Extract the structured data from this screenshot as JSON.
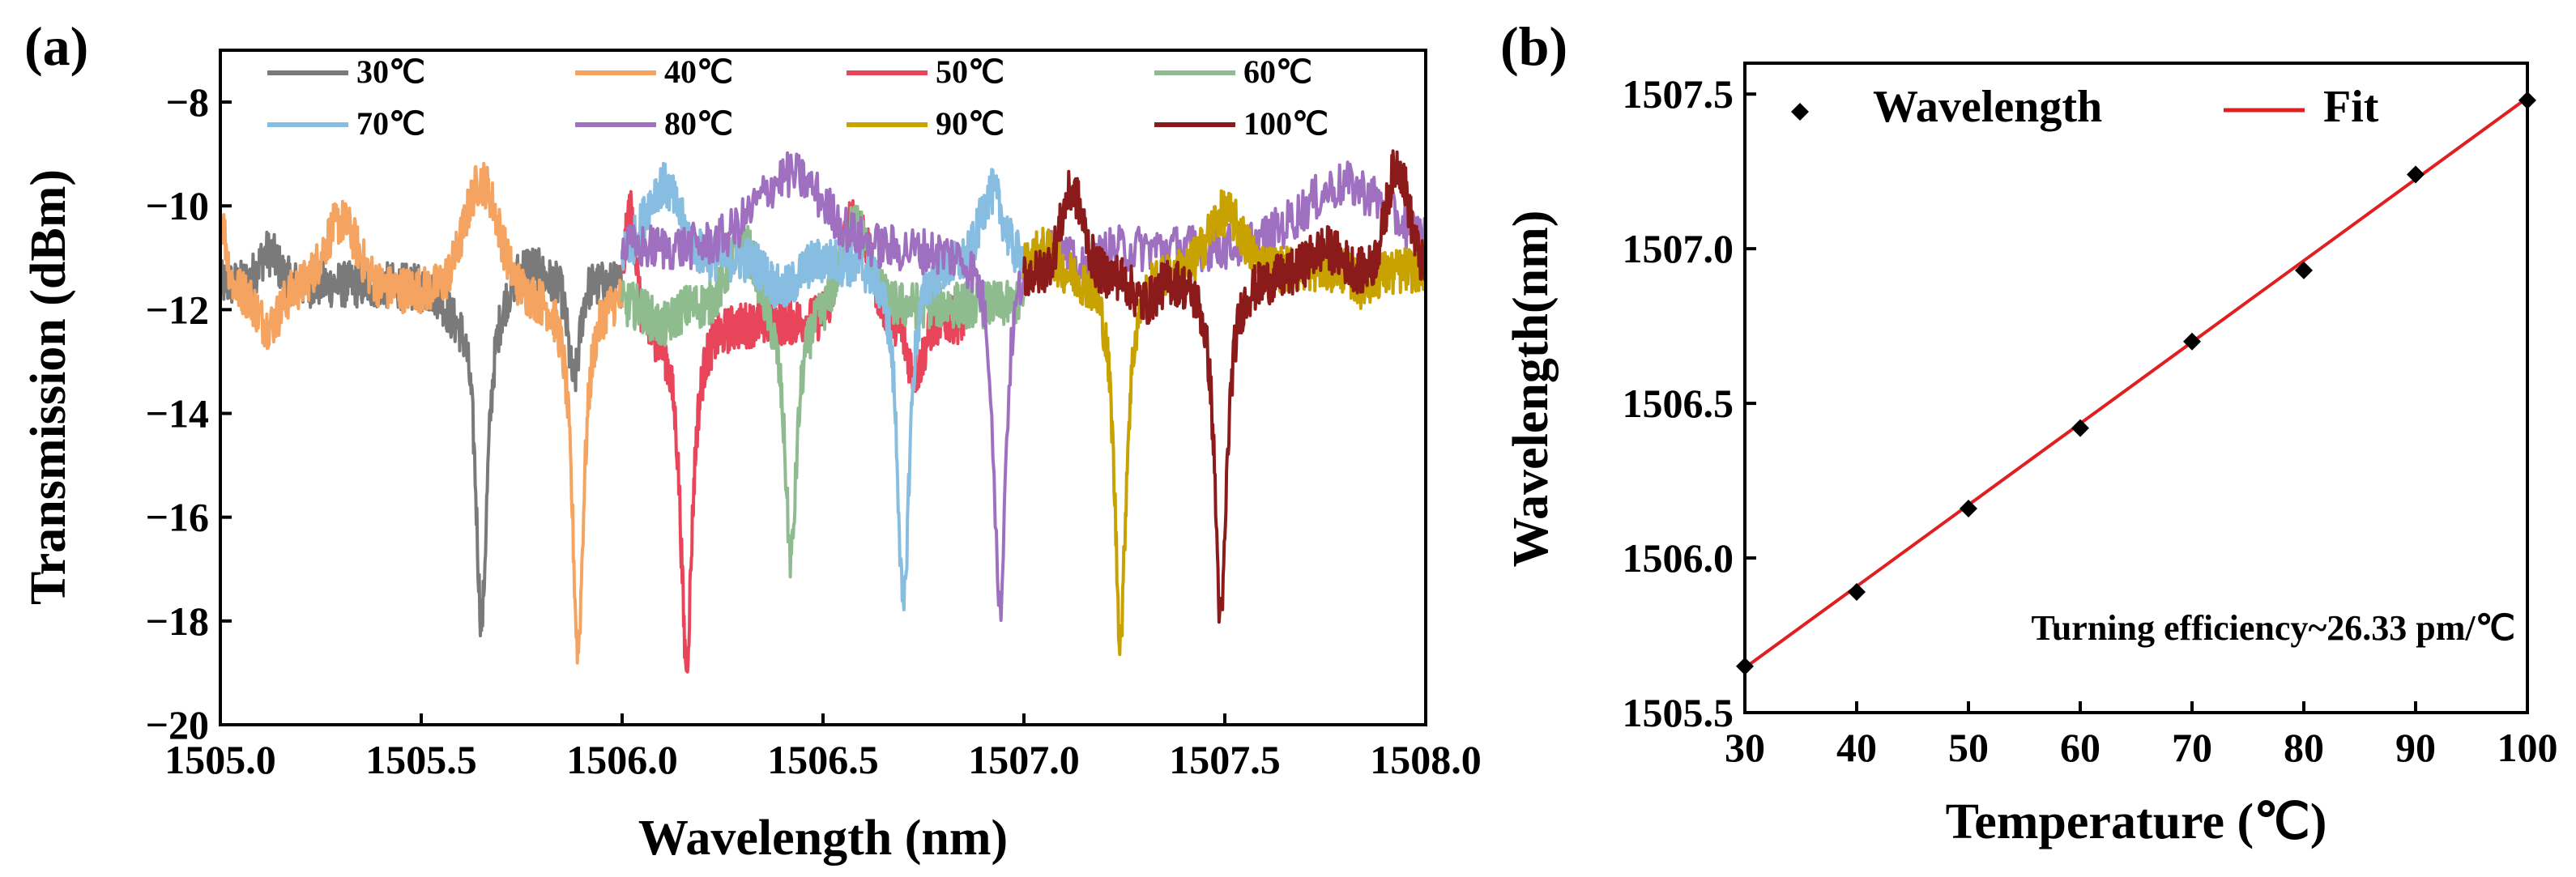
{
  "chart_data": [
    {
      "panel": "(a)",
      "type": "line",
      "title": "",
      "xlabel": "Wavelength (nm)",
      "ylabel": "Transmission (dBm)",
      "xlim": [
        1505.0,
        1508.0
      ],
      "ylim": [
        -20,
        -7
      ],
      "xticks": [
        1505.0,
        1505.5,
        1506.0,
        1506.5,
        1507.0,
        1507.5,
        1508.0
      ],
      "xtick_labels": [
        "1505.0",
        "1505.5",
        "1506.0",
        "1506.5",
        "1507.0",
        "1507.5",
        "1508.0"
      ],
      "yticks": [
        -20,
        -18,
        -16,
        -14,
        -12,
        -10,
        -8
      ],
      "ytick_labels": [
        "−20",
        "−18",
        "−16",
        "−14",
        "−12",
        "−10",
        "−8"
      ],
      "legend_position": "top",
      "series": [
        {
          "name": "30℃",
          "color": "#7a7a7a",
          "range": [
            1505.0,
            1506.0
          ],
          "dip": 1505.65,
          "min": -18.0,
          "base": -11.5,
          "bumps": [
            [
              1505.12,
              -10.9,
              0.035
            ],
            [
              1505.76,
              -11.0,
              0.05
            ],
            [
              1505.58,
              -11.8,
              0.03
            ]
          ],
          "dips2": [
            [
              1505.88,
              -13.3,
              0.02
            ]
          ]
        },
        {
          "name": "40℃",
          "color": "#f4a460",
          "range": [
            1505.0,
            1506.0
          ],
          "dip": 1505.89,
          "min": -18.5,
          "base": -11.6,
          "bumps": [
            [
              1505.3,
              -10.3,
              0.06
            ],
            [
              1505.65,
              -9.5,
              0.06
            ],
            [
              1505.0,
              -10.2,
              0.02
            ]
          ],
          "dips2": [
            [
              1505.12,
              -12.3,
              0.04
            ]
          ]
        },
        {
          "name": "50℃",
          "color": "#e8455a",
          "range": [
            1506.0,
            1506.85
          ],
          "dip": 1506.16,
          "min": -18.8,
          "base": -12.2,
          "bumps": [
            [
              1506.02,
              -10.0,
              0.02
            ],
            [
              1506.58,
              -10.2,
              0.05
            ]
          ],
          "dips2": [
            [
              1506.73,
              -13.2,
              0.03
            ]
          ]
        },
        {
          "name": "60℃",
          "color": "#8fbc8f",
          "range": [
            1506.0,
            1507.0
          ],
          "dip": 1506.42,
          "min": -16.8,
          "base": -11.9,
          "bumps": [
            [
              1506.3,
              -10.6,
              0.05
            ],
            [
              1506.58,
              -10.3,
              0.05
            ]
          ],
          "dips2": [
            [
              1506.1,
              -12.3,
              0.04
            ]
          ]
        },
        {
          "name": "70℃",
          "color": "#87bde0",
          "range": [
            1506.0,
            1507.0
          ],
          "dip": 1506.7,
          "min": -17.8,
          "base": -11.0,
          "bumps": [
            [
              1506.1,
              -9.6,
              0.06
            ],
            [
              1506.92,
              -9.7,
              0.04
            ]
          ],
          "dips2": [
            [
              1506.4,
              -11.6,
              0.05
            ]
          ]
        },
        {
          "name": "80℃",
          "color": "#a070c0",
          "range": [
            1506.0,
            1508.0
          ],
          "dip": 1506.94,
          "min": -17.8,
          "base": -10.8,
          "bumps": [
            [
              1506.42,
              -9.4,
              0.12
            ],
            [
              1507.8,
              -9.6,
              0.15
            ]
          ],
          "dips2": [
            [
              1507.15,
              -11.2,
              0.04
            ]
          ]
        },
        {
          "name": "90℃",
          "color": "#c8a200",
          "range": [
            1507.0,
            1508.0
          ],
          "dip": 1507.24,
          "min": -18.3,
          "base": -11.2,
          "bumps": [
            [
              1507.05,
              -10.8,
              0.04
            ],
            [
              1507.5,
              -10.1,
              0.06
            ],
            [
              1507.9,
              -11.3,
              0.05
            ]
          ],
          "dips2": [
            [
              1507.84,
              -11.5,
              0.03
            ]
          ]
        },
        {
          "name": "100℃",
          "color": "#8b1a1a",
          "range": [
            1507.0,
            1508.0
          ],
          "dip": 1507.49,
          "min": -18.0,
          "base": -11.3,
          "bumps": [
            [
              1507.12,
              -9.7,
              0.04
            ],
            [
              1507.93,
              -9.2,
              0.04
            ],
            [
              1507.75,
              -10.8,
              0.06
            ]
          ],
          "dips2": [
            [
              1507.3,
              -11.8,
              0.04
            ]
          ]
        }
      ]
    },
    {
      "panel": "(b)",
      "type": "scatter",
      "title": "",
      "xlabel": "Temperature (℃)",
      "ylabel": "Wavelength(nm)",
      "xlim": [
        30,
        100
      ],
      "ylim": [
        1505.5,
        1507.6
      ],
      "xticks": [
        30,
        40,
        50,
        60,
        70,
        80,
        90,
        100
      ],
      "xtick_labels": [
        "30",
        "40",
        "50",
        "60",
        "70",
        "80",
        "90",
        "100"
      ],
      "yticks": [
        1505.5,
        1506.0,
        1506.5,
        1507.0,
        1507.5
      ],
      "ytick_labels": [
        "1505.5",
        "1506.0",
        "1506.5",
        "1507.0",
        "1507.5"
      ],
      "legend_position": "top",
      "series": [
        {
          "name": "Wavelength",
          "marker": "diamond",
          "color": "#000000",
          "x": [
            30,
            40,
            50,
            60,
            70,
            80,
            90,
            100
          ],
          "y": [
            1505.65,
            1505.89,
            1506.16,
            1506.42,
            1506.7,
            1506.93,
            1507.24,
            1507.48
          ]
        },
        {
          "name": "Fit",
          "line": true,
          "color": "#e02020",
          "x": [
            30,
            100
          ],
          "y": [
            1505.645,
            1507.488
          ]
        }
      ],
      "annotation": "Turning efficiency~26.33 pm/℃"
    }
  ]
}
